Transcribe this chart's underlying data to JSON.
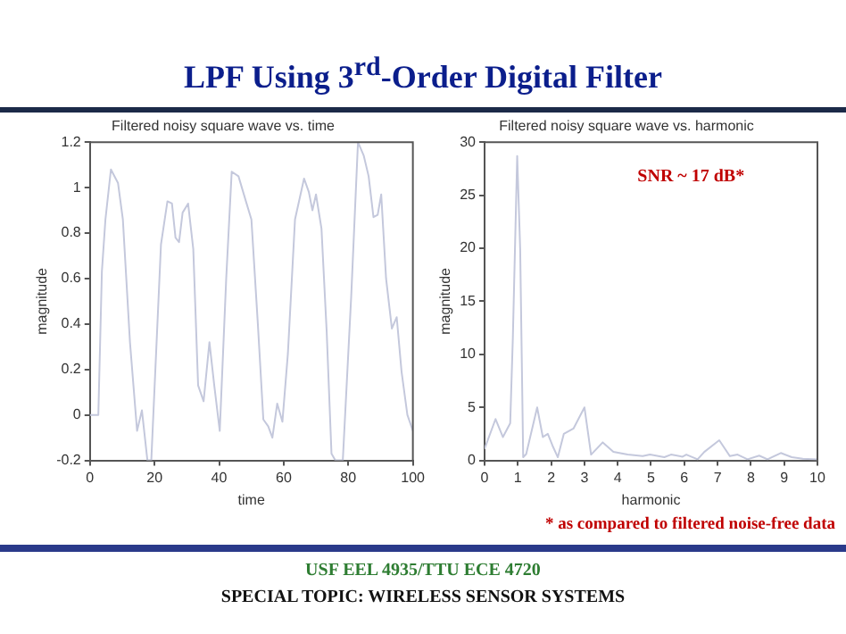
{
  "chart_data": [
    {
      "type": "line",
      "title": "Filtered noisy square wave vs. time",
      "xlabel": "time",
      "ylabel": "magnitude",
      "annotations": [
        "LPF Using 3$^{rd}$-Order Digital Filter"
      ],
      "xlim": [
        0,
        100
      ],
      "ylim": [
        -0.2,
        1.2
      ],
      "xticks": [
        0,
        20,
        40,
        60,
        80,
        100
      ],
      "yticks": [
        -0.2,
        0,
        0.2,
        0.4,
        0.6,
        0.8,
        1,
        1.2
      ],
      "grid": false,
      "legend": false,
      "marker": "none",
      "line_style": "solid",
      "series": [
        {
          "color": "#c4c8dc",
          "x": [
            0,
            2.6,
            3.7,
            4.8,
            6.5,
            8.7,
            10.2,
            12.4,
            14.6,
            16.1,
            17.8,
            19,
            22,
            24,
            25.4,
            26.5,
            27.6,
            28.7,
            30.4,
            32,
            33.5,
            35.2,
            37,
            38.5,
            40.2,
            42.2,
            43.9,
            46,
            48.3,
            50,
            52,
            53.7,
            55.2,
            56.5,
            58,
            59.6,
            61.3,
            63.5,
            66.3,
            67.8,
            68.9,
            70,
            71.7,
            73.3,
            74.8,
            76,
            78.3,
            80.9,
            83,
            84.8,
            86.3,
            87.8,
            89.1,
            90.2,
            91.7,
            93.5,
            95,
            96.5,
            98.3,
            100
          ],
          "values": [
            0,
            0,
            0.63,
            0.86,
            1.08,
            1.02,
            0.86,
            0.32,
            -0.07,
            0.02,
            -0.2,
            -0.2,
            0.75,
            0.94,
            0.93,
            0.78,
            0.76,
            0.89,
            0.93,
            0.73,
            0.13,
            0.06,
            0.32,
            0.13,
            -0.07,
            0.6,
            1.07,
            1.05,
            0.94,
            0.86,
            0.4,
            -0.02,
            -0.05,
            -0.1,
            0.05,
            -0.03,
            0.27,
            0.86,
            1.04,
            0.98,
            0.9,
            0.97,
            0.82,
            0.37,
            -0.17,
            -0.2,
            -0.2,
            0.52,
            1.2,
            1.14,
            1.05,
            0.87,
            0.88,
            0.97,
            0.6,
            0.38,
            0.43,
            0.19,
            0,
            -0.07
          ]
        }
      ]
    },
    {
      "type": "line",
      "title": "Filtered noisy square wave vs. harmonic",
      "xlabel": "harmonic",
      "ylabel": "magnitude",
      "annotations": [
        "SNR ~ 17 dB*",
        "* as compared to filtered noise-free data",
        "USF EEL 4935/TTU ECE 4720",
        "SPECIAL TOPIC: WIRELESS SENSOR SYSTEMS"
      ],
      "xlim": [
        0,
        10
      ],
      "ylim": [
        0,
        30
      ],
      "xticks": [
        0,
        1,
        2,
        3,
        4,
        5,
        6,
        7,
        8,
        9,
        10
      ],
      "yticks": [
        0,
        5,
        10,
        15,
        20,
        25,
        30
      ],
      "grid": false,
      "legend": false,
      "marker": "none",
      "line_style": "solid",
      "series": [
        {
          "color": "#c4c8dc",
          "x": [
            0,
            0.33,
            0.55,
            0.77,
            0.85,
            0.98,
            1.07,
            1.16,
            1.25,
            1.58,
            1.75,
            1.9,
            2.04,
            2.2,
            2.38,
            2.67,
            3,
            3.2,
            3.55,
            3.87,
            4.3,
            4.75,
            4.97,
            5.4,
            5.6,
            5.95,
            6.06,
            6.4,
            6.6,
            7.05,
            7.37,
            7.6,
            7.9,
            8.25,
            8.5,
            8.9,
            9.23,
            9.56,
            10
          ],
          "values": [
            1.1,
            3.9,
            2.2,
            3.5,
            11.6,
            28.7,
            19.9,
            0.3,
            0.6,
            5,
            2.2,
            2.5,
            1.4,
            0.3,
            2.5,
            3,
            5,
            0.55,
            1.7,
            0.8,
            0.55,
            0.4,
            0.55,
            0.3,
            0.55,
            0.35,
            0.55,
            0.1,
            0.8,
            1.9,
            0.4,
            0.55,
            0.1,
            0.45,
            0.1,
            0.7,
            0.3,
            0.15,
            0.1
          ]
        }
      ]
    }
  ]
}
